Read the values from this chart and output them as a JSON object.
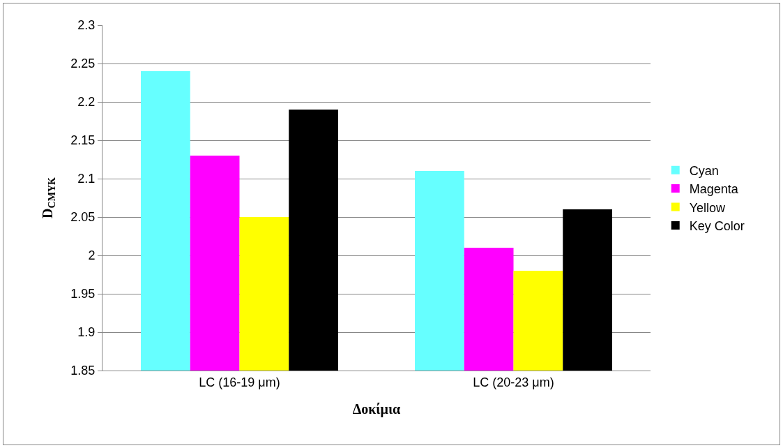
{
  "chart_data": {
    "type": "bar",
    "xlabel": "Δοκίμια",
    "ylabel": "D$_{CMYK}$",
    "categories": [
      "LC (16-19 μm)",
      "LC (20-23 μm)"
    ],
    "series": [
      {
        "name": "Cyan",
        "color": "#66ffff",
        "values": [
          2.24,
          2.11
        ]
      },
      {
        "name": "Magenta",
        "color": "#ff00ff",
        "values": [
          2.13,
          2.01
        ]
      },
      {
        "name": "Yellow",
        "color": "#ffff00",
        "values": [
          2.05,
          1.98
        ]
      },
      {
        "name": "Key Color",
        "color": "#000000",
        "values": [
          2.19,
          2.06
        ]
      }
    ],
    "ylim": [
      1.85,
      2.3
    ],
    "yticks": [
      1.85,
      1.9,
      1.95,
      2,
      2.05,
      2.1,
      2.15,
      2.2,
      2.25,
      2.3
    ],
    "grid": "y",
    "legend": "right"
  }
}
